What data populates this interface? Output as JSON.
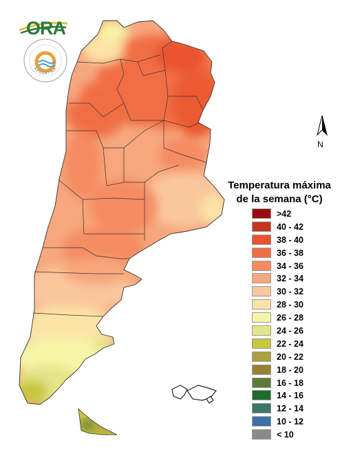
{
  "header": {
    "ora_logo_text": "ORA",
    "seal_text": "ARGENTINA"
  },
  "north_arrow": {
    "label": "N"
  },
  "legend": {
    "title_line1": "Temperatura máxima",
    "title_line2": "de la semana (°C)",
    "items": [
      {
        "label": ">42",
        "color": "#9b0a0a"
      },
      {
        "label": "40 - 42",
        "color": "#c7351d"
      },
      {
        "label": "38 - 40",
        "color": "#e9532e"
      },
      {
        "label": "36 - 38",
        "color": "#f16e45"
      },
      {
        "label": "34 - 36",
        "color": "#f58c62"
      },
      {
        "label": "32 - 34",
        "color": "#f7a77d"
      },
      {
        "label": "30 - 32",
        "color": "#fac79d"
      },
      {
        "label": "28 - 30",
        "color": "#fbe3a6"
      },
      {
        "label": "26 - 28",
        "color": "#f6f5a6"
      },
      {
        "label": "24 - 26",
        "color": "#e4e489"
      },
      {
        "label": "22 - 24",
        "color": "#c9c640"
      },
      {
        "label": "20 - 22",
        "color": "#ac9f3c"
      },
      {
        "label": "18 - 20",
        "color": "#978234"
      },
      {
        "label": "16 - 18",
        "color": "#5e7a35"
      },
      {
        "label": "14 - 16",
        "color": "#1f6b2e"
      },
      {
        "label": "12 - 14",
        "color": "#3d7566"
      },
      {
        "label": "10 - 12",
        "color": "#3f6fa4"
      },
      {
        "label": "< 10",
        "color": "#8a8a8a"
      }
    ]
  }
}
